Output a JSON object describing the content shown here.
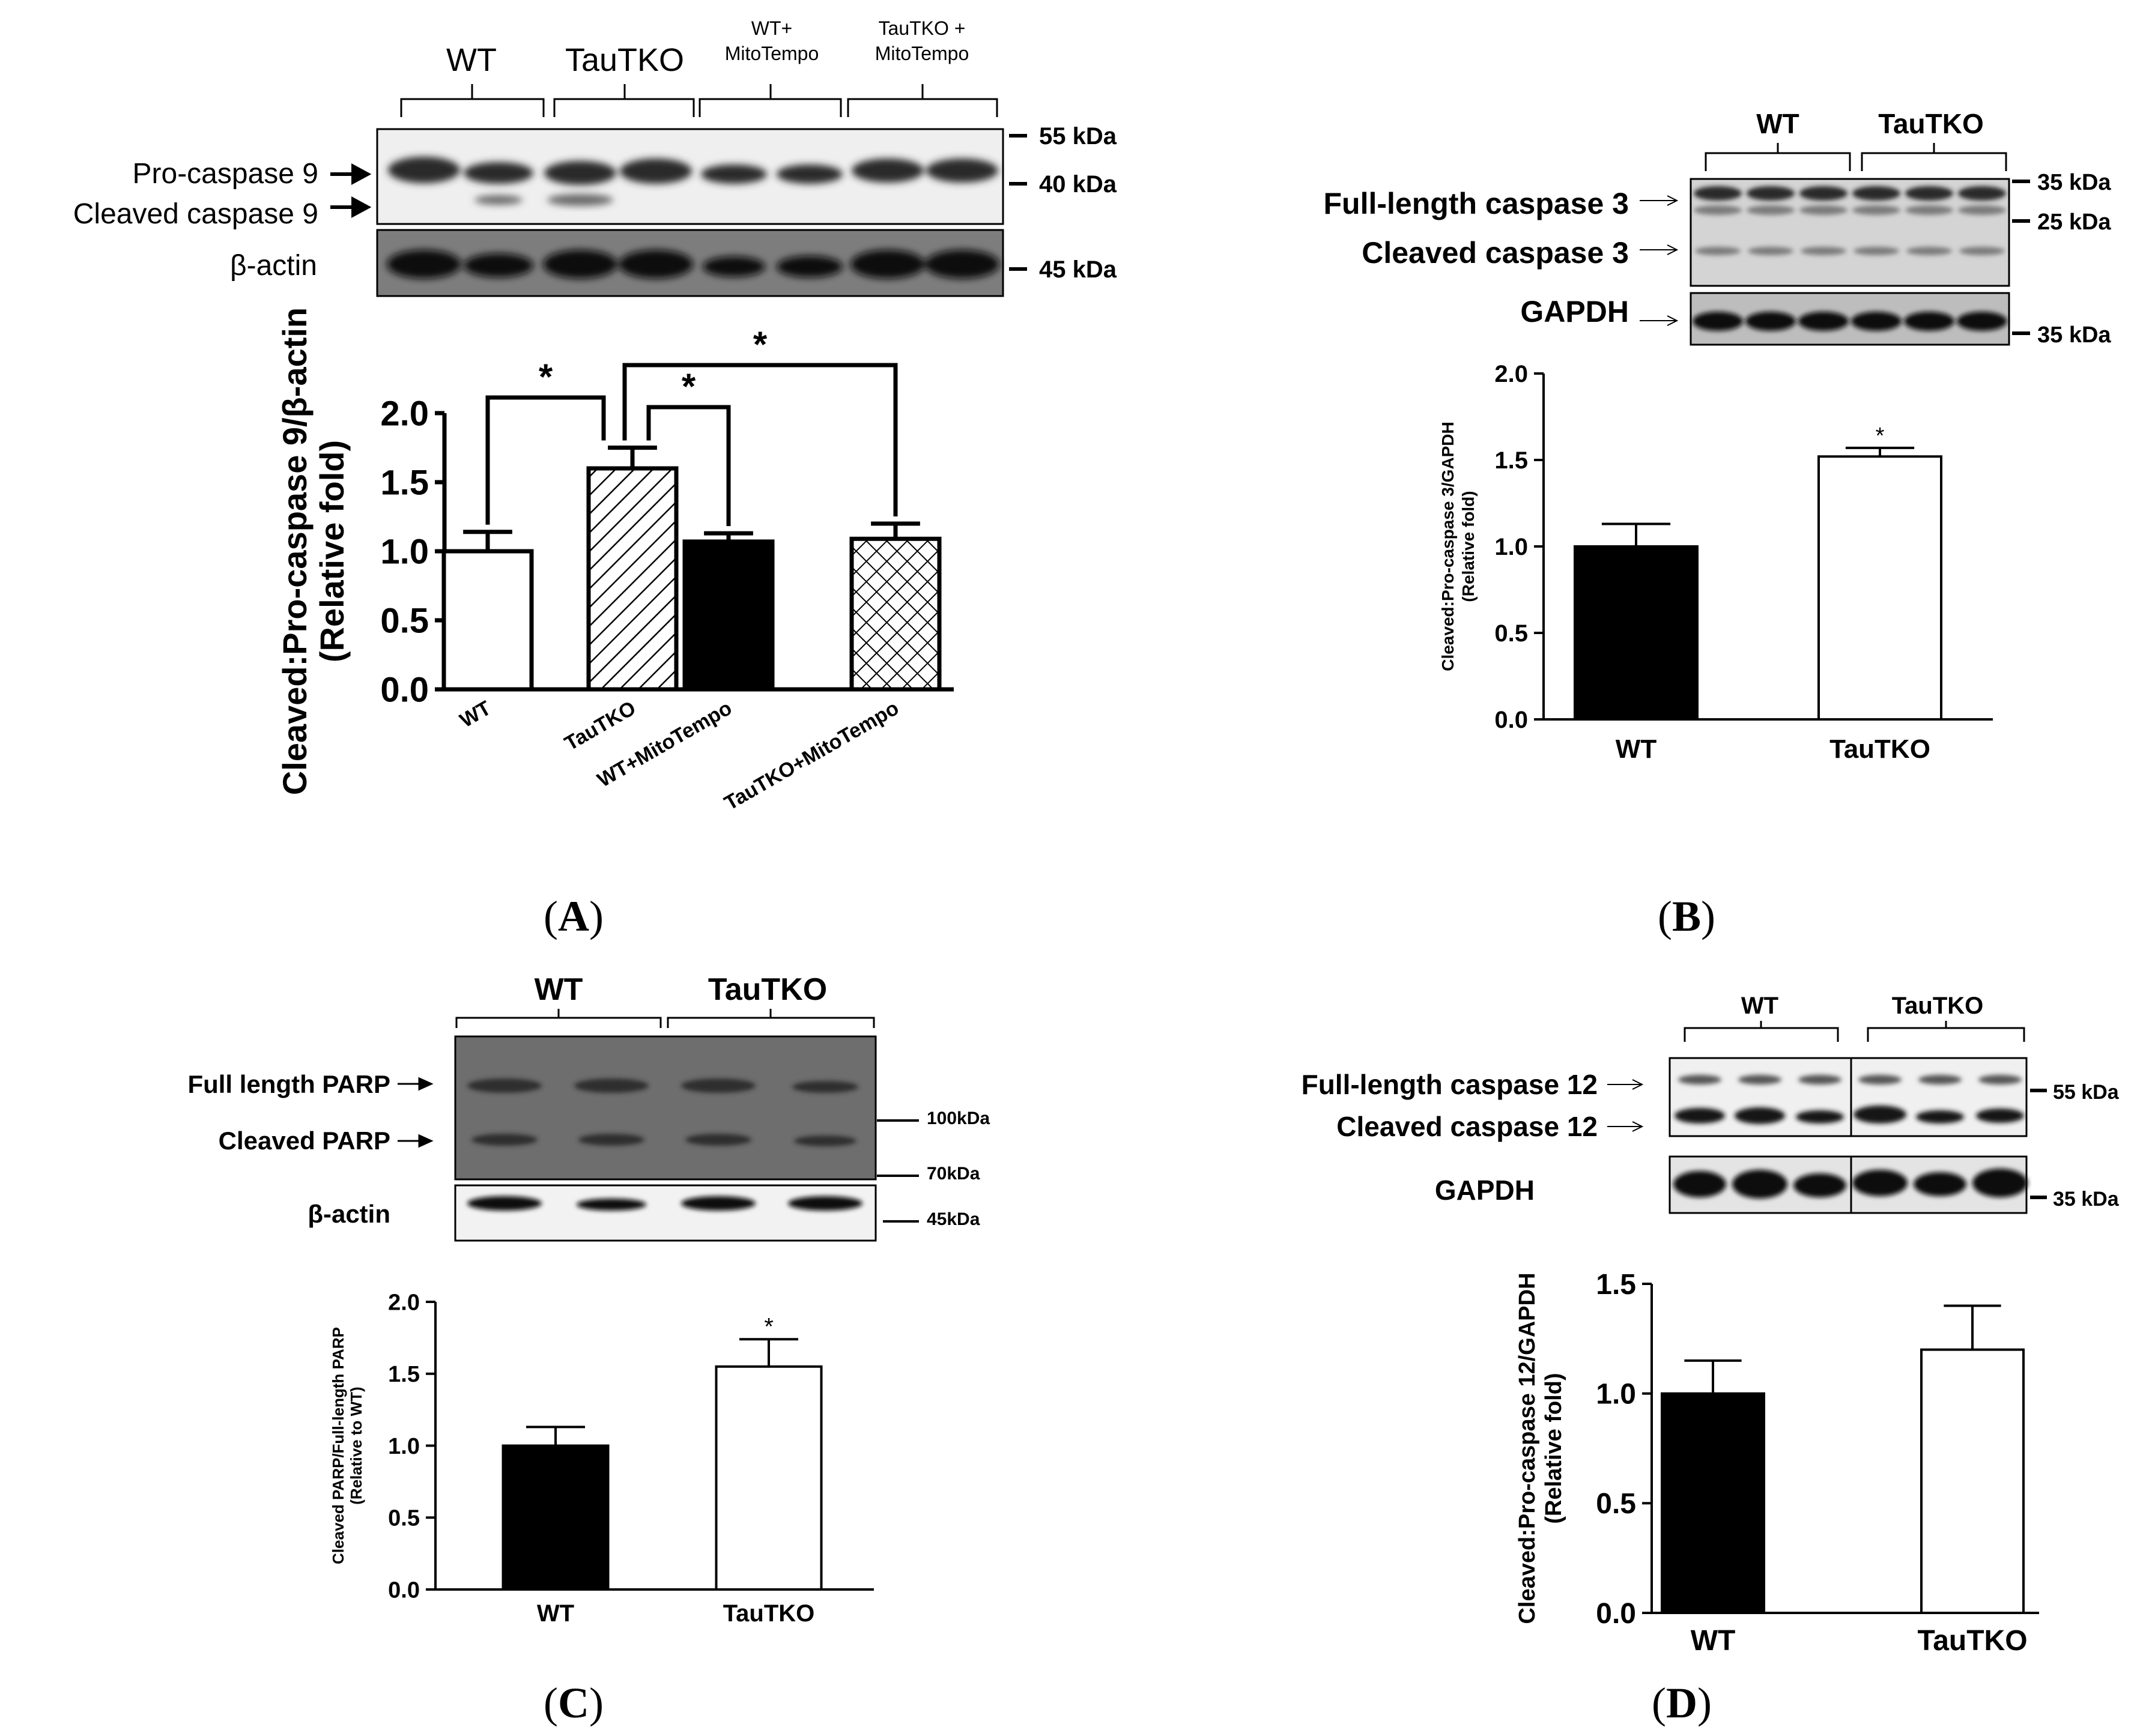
{
  "panels": {
    "A": {
      "letter": "A",
      "groups": [
        "WT",
        "TauTKO",
        "WT+\nMitoTempo",
        "TauTKO +\nMitoTempo"
      ],
      "markers": [
        "55 kDa",
        "40 kDa",
        "45 kDa"
      ],
      "band_labels": [
        "Pro-caspase 9",
        "Cleaved caspase 9",
        "β-actin"
      ],
      "significance": "*"
    },
    "B": {
      "letter": "B",
      "groups": [
        "WT",
        "TauTKO"
      ],
      "markers": [
        "35 kDa",
        "25 kDa",
        "35 kDa"
      ],
      "band_labels": [
        "Full-length caspase 3",
        "Cleaved caspase 3",
        "GAPDH"
      ],
      "significance": "*"
    },
    "C": {
      "letter": "C",
      "groups": [
        "WT",
        "TauTKO"
      ],
      "markers": [
        "100kDa",
        "70kDa",
        "45kDa"
      ],
      "band_labels": [
        "Full length PARP",
        "Cleaved PARP",
        "β-actin"
      ],
      "significance": "*"
    },
    "D": {
      "letter": "D",
      "groups": [
        "WT",
        "TauTKO"
      ],
      "markers": [
        "55 kDa",
        "35 kDa"
      ],
      "band_labels": [
        "Full-length caspase 12",
        "Cleaved caspase 12",
        "GAPDH"
      ]
    }
  },
  "chart_data": [
    {
      "panel": "A",
      "type": "bar",
      "categories": [
        "WT",
        "TauTKO",
        "WT+MitoTempo",
        "TauTKO+MitoTempo"
      ],
      "values": [
        1.0,
        1.6,
        1.07,
        1.09
      ],
      "errors": [
        0.14,
        0.15,
        0.06,
        0.11
      ],
      "fills": [
        "white",
        "hatch",
        "black",
        "crosshatch"
      ],
      "ylabel": "Cleaved:Pro-caspase 9/β-actin\n(Relative fold)",
      "yticks": [
        "0.0",
        "0.5",
        "1.0",
        "1.5",
        "2.0"
      ],
      "ylim": [
        0,
        2.0
      ],
      "significance": [
        [
          "WT",
          "TauTKO"
        ],
        [
          "TauTKO",
          "WT+MitoTempo"
        ],
        [
          "TauTKO",
          "TauTKO+MitoTempo"
        ]
      ]
    },
    {
      "panel": "B",
      "type": "bar",
      "categories": [
        "WT",
        "TauTKO"
      ],
      "values": [
        1.0,
        1.52
      ],
      "errors": [
        0.13,
        0.05
      ],
      "fills": [
        "black",
        "white"
      ],
      "ylabel": "Cleaved:Pro-caspase 3/GAPDH\n(Relative fold)",
      "yticks": [
        "0.0",
        "0.5",
        "1.0",
        "1.5",
        "2.0"
      ],
      "ylim": [
        0,
        2.0
      ]
    },
    {
      "panel": "C",
      "type": "bar",
      "categories": [
        "WT",
        "TauTKO"
      ],
      "values": [
        1.0,
        1.55
      ],
      "errors": [
        0.13,
        0.19
      ],
      "fills": [
        "black",
        "white"
      ],
      "ylabel": "Cleaved PARP/Full-length PARP\n(Relative to WT)",
      "yticks": [
        "0.0",
        "0.5",
        "1.0",
        "1.5",
        "2.0"
      ],
      "ylim": [
        0,
        2.0
      ]
    },
    {
      "panel": "D",
      "type": "bar",
      "categories": [
        "WT",
        "TauTKO"
      ],
      "values": [
        1.0,
        1.2
      ],
      "errors": [
        0.15,
        0.2
      ],
      "fills": [
        "black",
        "white"
      ],
      "ylabel": "Cleaved:Pro-caspase 12/GAPDH\n(Relative fold)",
      "yticks": [
        "0.0",
        "0.5",
        "1.0",
        "1.5"
      ],
      "ylim": [
        0,
        1.5
      ]
    }
  ]
}
